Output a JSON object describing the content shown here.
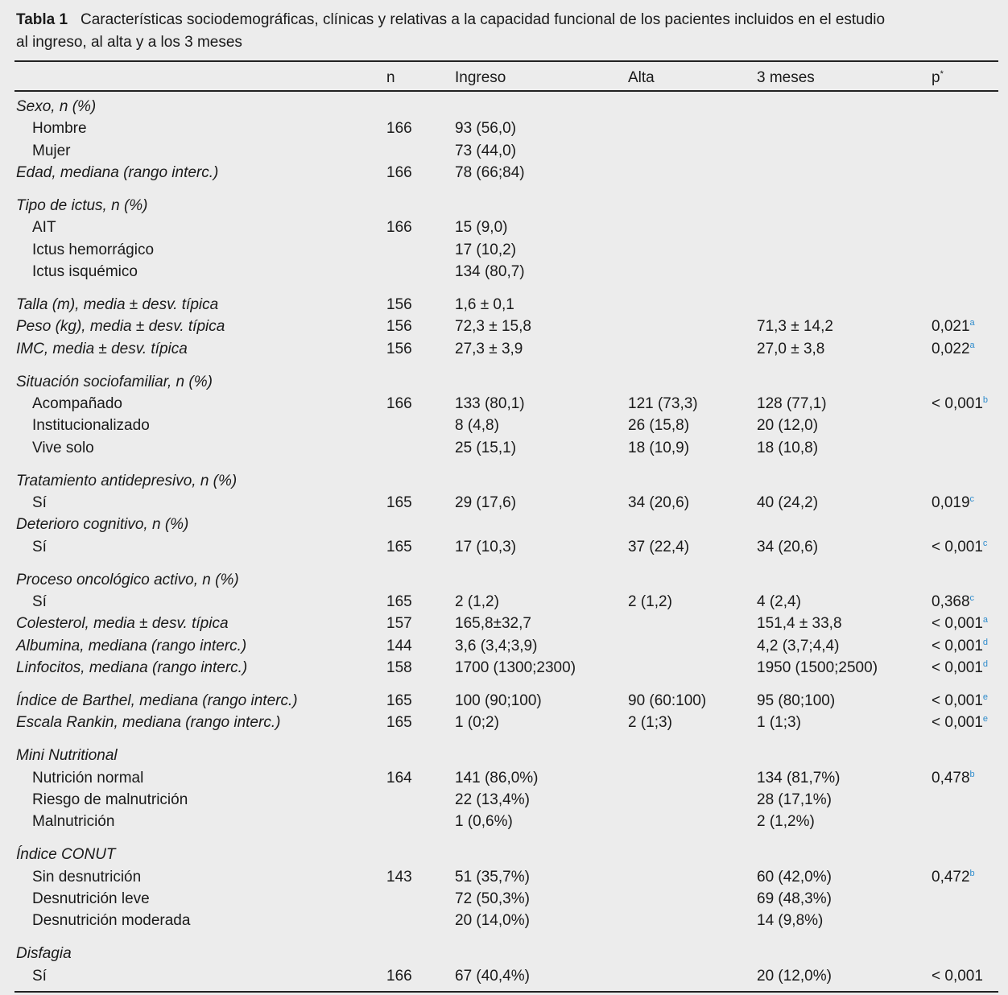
{
  "table": {
    "title": "Tabla 1",
    "caption_lines": [
      "Características sociodemográficas, clínicas y relativas a la capacidad funcional de los pacientes incluidos en el estudio",
      "al ingreso, al alta y a los 3 meses"
    ],
    "header": {
      "n": "n",
      "ingreso": "Ingreso",
      "alta": "Alta",
      "tres_meses": "3 meses",
      "p": "p",
      "p_note": "*"
    },
    "groups": [
      [
        {
          "variable": "Sexo, n (%)"
        },
        {
          "option": "Hombre",
          "n": "166",
          "ingreso": "93 (56,0)"
        },
        {
          "option": "Mujer",
          "ingreso": "73 (44,0)"
        },
        {
          "variable": "Edad, mediana (rango interc.)",
          "n": "166",
          "ingreso": "78 (66;84)"
        }
      ],
      [
        {
          "variable": "Tipo de ictus, n (%)"
        },
        {
          "option": "AIT",
          "n": "166",
          "ingreso": "15 (9,0)"
        },
        {
          "option": "Ictus hemorrágico",
          "ingreso": "17 (10,2)"
        },
        {
          "option": "Ictus isquémico",
          "ingreso": "134 (80,7)"
        }
      ],
      [
        {
          "variable": "Talla (m), media ± desv. típica",
          "n": "156",
          "ingreso": "1,6 ± 0,1"
        },
        {
          "variable": "Peso (kg), media ± desv. típica",
          "n": "156",
          "ingreso": "72,3 ± 15,8",
          "tres_meses": "71,3 ± 14,2",
          "p": "0,021",
          "p_note": "a"
        },
        {
          "variable": "IMC, media ± desv. típica",
          "n": "156",
          "ingreso": "27,3 ± 3,9",
          "tres_meses": "27,0 ± 3,8",
          "p": "0,022",
          "p_note": "a"
        }
      ],
      [
        {
          "variable": "Situación sociofamiliar, n (%)"
        },
        {
          "option": "Acompañado",
          "n": "166",
          "ingreso": "133 (80,1)",
          "alta": "121 (73,3)",
          "tres_meses": "128 (77,1)",
          "p": "< 0,001",
          "p_note": "b"
        },
        {
          "option": "Institucionalizado",
          "ingreso": "8 (4,8)",
          "alta": "26 (15,8)",
          "tres_meses": "20 (12,0)"
        },
        {
          "option": "Vive solo",
          "ingreso": "25 (15,1)",
          "alta": "18 (10,9)",
          "tres_meses": "18 (10,8)"
        }
      ],
      [
        {
          "variable": "Tratamiento antidepresivo, n (%)"
        },
        {
          "option": "Sí",
          "n": "165",
          "ingreso": "29 (17,6)",
          "alta": "34 (20,6)",
          "tres_meses": "40 (24,2)",
          "p": "0,019",
          "p_note": "c"
        },
        {
          "variable": "Deterioro cognitivo, n (%)"
        },
        {
          "option": "Sí",
          "n": "165",
          "ingreso": "17 (10,3)",
          "alta": "37 (22,4)",
          "tres_meses": "34 (20,6)",
          "p": "< 0,001",
          "p_note": "c"
        }
      ],
      [
        {
          "variable": "Proceso oncológico activo, n (%)"
        },
        {
          "option": "Sí",
          "n": "165",
          "ingreso": "2 (1,2)",
          "alta": "2 (1,2)",
          "tres_meses": "4 (2,4)",
          "p": "0,368",
          "p_note": "c"
        },
        {
          "variable": "Colesterol, media ± desv. típica",
          "n": "157",
          "ingreso": "165,8±32,7",
          "tres_meses": "151,4 ± 33,8",
          "p": "< 0,001",
          "p_note": "a"
        },
        {
          "variable": "Albumina, mediana (rango interc.)",
          "n": "144",
          "ingreso": "3,6 (3,4;3,9)",
          "tres_meses": "4,2 (3,7;4,4)",
          "p": "< 0,001",
          "p_note": "d"
        },
        {
          "variable": "Linfocitos, mediana (rango interc.)",
          "n": "158",
          "ingreso": "1700 (1300;2300)",
          "tres_meses": "1950 (1500;2500)",
          "p": "< 0,001",
          "p_note": "d"
        }
      ],
      [
        {
          "variable": "Índice de Barthel, mediana (rango interc.)",
          "n": "165",
          "ingreso": "100 (90;100)",
          "alta": "90 (60:100)",
          "tres_meses": "95 (80;100)",
          "p": "< 0,001",
          "p_note": "e"
        },
        {
          "variable": "Escala Rankin, mediana (rango interc.)",
          "n": "165",
          "ingreso": "1 (0;2)",
          "alta": "2 (1;3)",
          "tres_meses": "1 (1;3)",
          "p": "< 0,001",
          "p_note": "e"
        }
      ],
      [
        {
          "variable": "Mini Nutritional"
        },
        {
          "option": "Nutrición normal",
          "n": "164",
          "ingreso": "141 (86,0%)",
          "tres_meses": "134 (81,7%)",
          "p": "0,478",
          "p_note": "b"
        },
        {
          "option": "Riesgo de malnutrición",
          "ingreso": "22 (13,4%)",
          "tres_meses": "28 (17,1%)"
        },
        {
          "option": "Malnutrición",
          "ingreso": "1 (0,6%)",
          "tres_meses": "2 (1,2%)"
        }
      ],
      [
        {
          "variable": "Índice CONUT"
        },
        {
          "option": "Sin desnutrición",
          "n": "143",
          "ingreso": "51 (35,7%)",
          "tres_meses": "60 (42,0%)",
          "p": "0,472",
          "p_note": "b"
        },
        {
          "option": "Desnutrición leve",
          "ingreso": "72 (50,3%)",
          "tres_meses": "69 (48,3%)"
        },
        {
          "option": "Desnutrición moderada",
          "ingreso": "20 (14,0%)",
          "tres_meses": "14 (9,8%)"
        }
      ],
      [
        {
          "variable": "Disfagia"
        },
        {
          "option": "Sí",
          "n": "166",
          "ingreso": "67 (40,4%)",
          "tres_meses": "20 (12,0%)",
          "p": "< 0,001"
        }
      ]
    ]
  }
}
